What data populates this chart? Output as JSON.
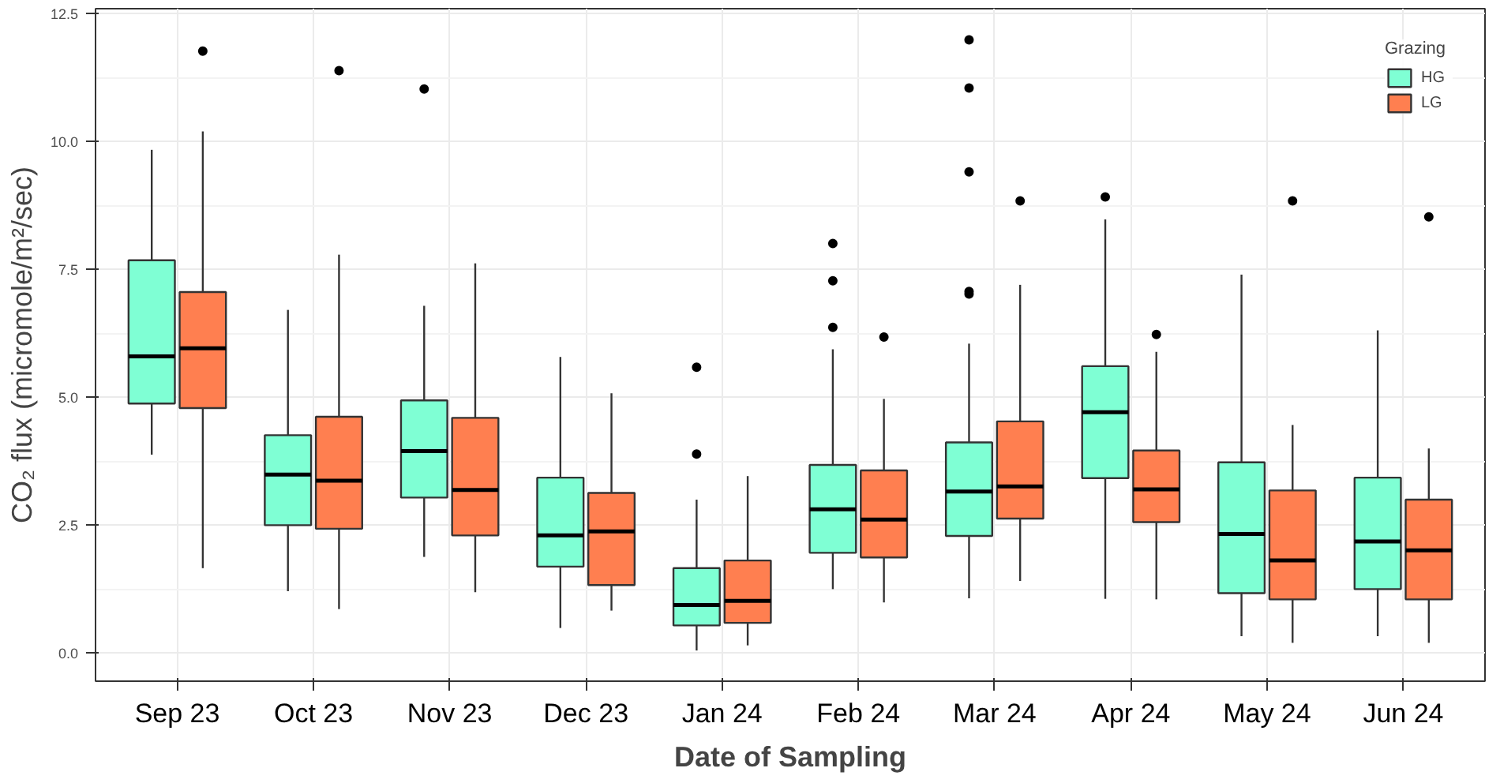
{
  "chart_data": {
    "type": "box",
    "xlabel": "Date of Sampling",
    "ylabel": "CO₂ flux (micromole/m²/sec)",
    "legend_title": "Grazing",
    "categories": [
      "Sep 23",
      "Oct 23",
      "Nov 23",
      "Dec 23",
      "Jan 24",
      "Feb 24",
      "Mar 24",
      "Apr 24",
      "May 24",
      "Jun 24"
    ],
    "series": [
      {
        "name": "HG",
        "color": "#7fffd4",
        "boxes": [
          {
            "low": 3.88,
            "q1": 4.88,
            "median": 5.8,
            "q3": 7.68,
            "high": 9.84
          },
          {
            "low": 1.21,
            "q1": 2.5,
            "median": 3.49,
            "q3": 4.26,
            "high": 6.71
          },
          {
            "low": 1.88,
            "q1": 3.04,
            "median": 3.95,
            "q3": 4.94,
            "high": 6.79,
            "outliers": [
              11.03
            ]
          },
          {
            "low": 0.49,
            "q1": 1.69,
            "median": 2.3,
            "q3": 3.43,
            "high": 5.79
          },
          {
            "low": 0.05,
            "q1": 0.54,
            "median": 0.94,
            "q3": 1.66,
            "high": 3.0,
            "outliers": [
              3.89,
              5.59
            ]
          },
          {
            "low": 1.25,
            "q1": 1.96,
            "median": 2.81,
            "q3": 3.68,
            "high": 5.94,
            "outliers": [
              6.37,
              7.28,
              8.01
            ]
          },
          {
            "low": 1.07,
            "q1": 2.29,
            "median": 3.16,
            "q3": 4.12,
            "high": 6.05,
            "outliers": [
              7.02,
              7.07,
              9.41,
              11.05,
              11.99
            ]
          },
          {
            "low": 1.06,
            "q1": 3.42,
            "median": 4.71,
            "q3": 5.61,
            "high": 8.48,
            "outliers": [
              8.92
            ]
          },
          {
            "low": 0.33,
            "q1": 1.17,
            "median": 2.33,
            "q3": 3.73,
            "high": 7.4
          },
          {
            "low": 0.33,
            "q1": 1.25,
            "median": 2.18,
            "q3": 3.43,
            "high": 6.31
          }
        ]
      },
      {
        "name": "LG",
        "color": "#ff7f50",
        "boxes": [
          {
            "low": 1.66,
            "q1": 4.79,
            "median": 5.96,
            "q3": 7.06,
            "high": 10.2,
            "outliers": [
              11.77
            ]
          },
          {
            "low": 0.86,
            "q1": 2.43,
            "median": 3.37,
            "q3": 4.62,
            "high": 7.79,
            "outliers": [
              11.39
            ]
          },
          {
            "low": 1.19,
            "q1": 2.3,
            "median": 3.19,
            "q3": 4.6,
            "high": 7.62
          },
          {
            "low": 0.83,
            "q1": 1.33,
            "median": 2.38,
            "q3": 3.13,
            "high": 5.08
          },
          {
            "low": 0.15,
            "q1": 0.59,
            "median": 1.02,
            "q3": 1.81,
            "high": 3.46
          },
          {
            "low": 0.99,
            "q1": 1.87,
            "median": 2.61,
            "q3": 3.57,
            "high": 4.97,
            "outliers": [
              6.18
            ]
          },
          {
            "low": 1.41,
            "q1": 2.63,
            "median": 3.26,
            "q3": 4.53,
            "high": 7.2,
            "outliers": [
              8.84
            ]
          },
          {
            "low": 1.05,
            "q1": 2.56,
            "median": 3.2,
            "q3": 3.96,
            "high": 5.89,
            "outliers": [
              6.23
            ]
          },
          {
            "low": 0.2,
            "q1": 1.05,
            "median": 1.81,
            "q3": 3.18,
            "high": 4.46,
            "outliers": [
              8.84
            ]
          },
          {
            "low": 0.2,
            "q1": 1.05,
            "median": 2.01,
            "q3": 3.0,
            "high": 4.0,
            "outliers": [
              8.53
            ]
          }
        ]
      }
    ],
    "ylim": [
      -0.55,
      12.6
    ],
    "yticks": [
      {
        "value": 0,
        "label": "0.0"
      },
      2.5,
      {
        "value": 5,
        "label": "5.0"
      },
      7.5,
      {
        "value": 10,
        "label": "10.0"
      },
      12.5
    ],
    "grid": true,
    "legend": "top right"
  }
}
